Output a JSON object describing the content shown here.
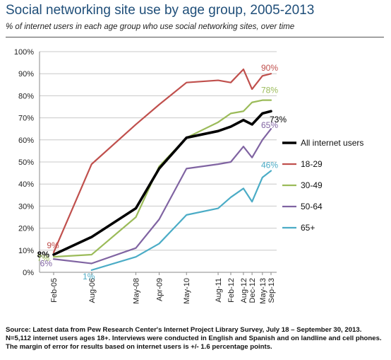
{
  "header": {
    "title": "Social networking site use by age group, 2005-2013",
    "subtitle": "% of internet users in each age group who use social networking sites, over time"
  },
  "source": {
    "text": "Source: Latest data from Pew Research Center's Internet Project Library Survey, July 18 – September 30, 2013. N=5,112 internet users ages 18+. Interviews were conducted in English and Spanish and on landline and cell phones. The margin of error for results based on internet users is +/- 1.6 percentage points."
  },
  "chart_data": {
    "type": "line",
    "title": "Social networking site use by age group, 2005-2013",
    "subtitle": "% of internet users in each age group who use social networking sites, over time",
    "xlabel": "",
    "ylabel": "",
    "ylim": [
      0,
      100
    ],
    "y_ticks": [
      "0%",
      "10%",
      "20%",
      "30%",
      "40%",
      "50%",
      "60%",
      "70%",
      "80%",
      "90%",
      "100%"
    ],
    "grid": true,
    "legend_position": "right",
    "x_labels": [
      "Feb-05",
      "Aug-06",
      "May-08",
      "Apr-09",
      "May-10",
      "Aug-11",
      "Feb-12",
      "Aug-12",
      "Dec-12",
      "May-13",
      "Sep-13"
    ],
    "x": [
      2005.12,
      2006.62,
      2008.37,
      2009.29,
      2010.37,
      2011.62,
      2012.12,
      2012.62,
      2012.96,
      2013.37,
      2013.71
    ],
    "series": [
      {
        "name": "All internet users",
        "color": "#000000",
        "values": [
          8,
          16,
          29,
          47,
          61,
          64,
          66,
          69,
          67,
          72,
          73
        ],
        "start_label": "8%",
        "end_label": "73%"
      },
      {
        "name": "18-29",
        "color": "#c0504d",
        "values": [
          9,
          49,
          67,
          76,
          86,
          87,
          86,
          92,
          83,
          89,
          90
        ],
        "start_label": "9%",
        "end_label": "90%"
      },
      {
        "name": "30-49",
        "color": "#9bbb59",
        "values": [
          7,
          8,
          25,
          48,
          61,
          68,
          72,
          73,
          77,
          78,
          78
        ],
        "start_label": "7%",
        "end_label": "78%"
      },
      {
        "name": "50-64",
        "color": "#8064a2",
        "values": [
          6,
          4,
          11,
          24,
          47,
          49,
          50,
          57,
          52,
          60,
          65
        ],
        "start_label": "6%",
        "end_label": "65%"
      },
      {
        "name": "65+",
        "color": "#4bacc6",
        "values": [
          null,
          1,
          7,
          13,
          26,
          29,
          34,
          38,
          32,
          43,
          46
        ],
        "start_label": "1%",
        "end_label": "46%"
      }
    ]
  }
}
